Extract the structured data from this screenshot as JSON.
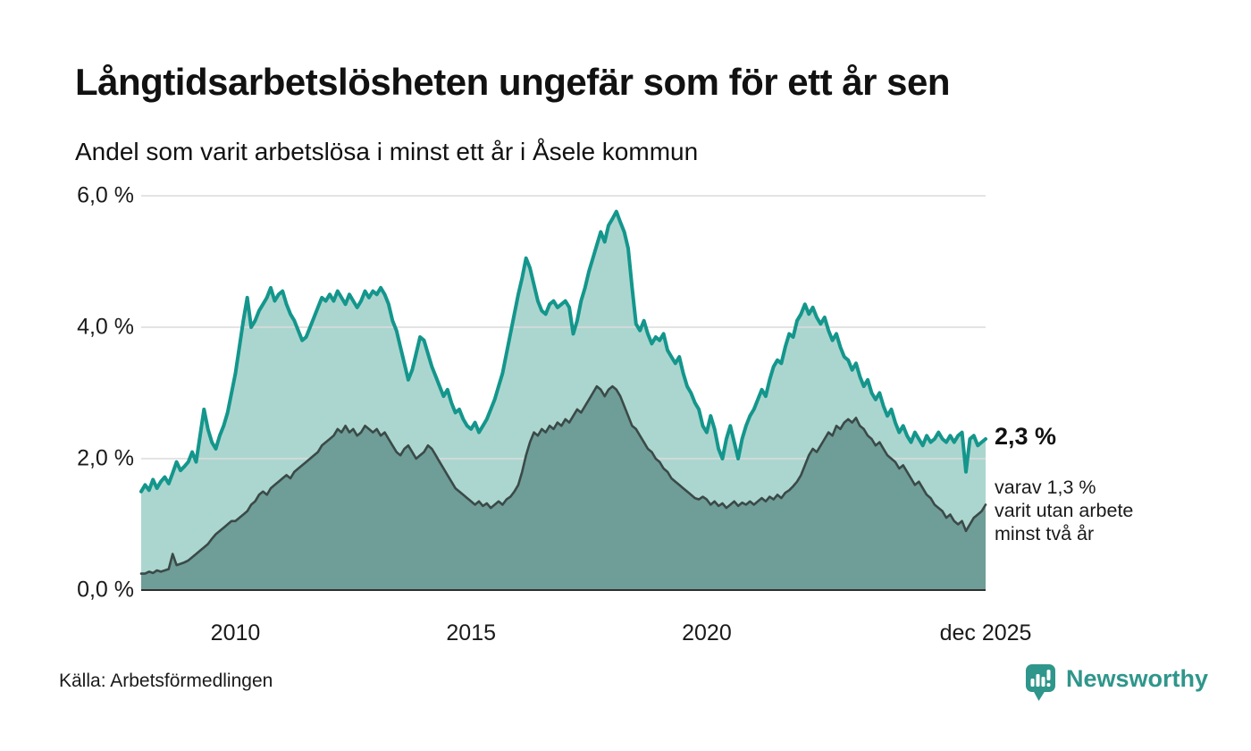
{
  "title": "Långtidsarbetslösheten ungefär som för ett år sen",
  "subtitle": "Andel som varit arbetslösa i minst ett år i Åsele kommun",
  "source": "Källa: Arbetsförmedlingen",
  "logo": {
    "text": "Newsworthy"
  },
  "annotation": {
    "value": "2,3 %",
    "line1": "varav 1,3 %",
    "line2": "varit utan arbete",
    "line3": "minst två år"
  },
  "colors": {
    "teal_line": "#14968c",
    "light_fill": "#abd6cf",
    "dark_fill": "#6f9d98",
    "dark_line": "#3a4a48",
    "grid": "#dcdcdc",
    "axis": "#2f2f2f",
    "logo_teal": "#2f968b"
  },
  "chart_data": {
    "type": "area",
    "title": "Andel som varit arbetslösa i minst ett år i Åsele kommun",
    "x_start_year": 2008,
    "x_end_label": "dec 2025",
    "frequency": "monthly",
    "ylim": [
      0,
      6
    ],
    "y_ticks": [
      {
        "value": 0,
        "label": "0,0 %"
      },
      {
        "value": 2,
        "label": "2,0 %"
      },
      {
        "value": 4,
        "label": "4,0 %"
      },
      {
        "value": 6,
        "label": "6,0 %"
      }
    ],
    "x_ticks": [
      {
        "month_index": 24,
        "label": "2010"
      },
      {
        "month_index": 84,
        "label": "2015"
      },
      {
        "month_index": 144,
        "label": "2020"
      },
      {
        "month_index": 215,
        "label": "dec 2025"
      }
    ],
    "series": [
      {
        "name": "Andel arbetslösa minst ett år",
        "color": "#14968c",
        "fill": "#abd6cf",
        "line_width": 4,
        "end_value_label": "2,3 %",
        "values": [
          1.5,
          1.6,
          1.52,
          1.68,
          1.55,
          1.65,
          1.72,
          1.62,
          1.78,
          1.95,
          1.82,
          1.88,
          1.95,
          2.1,
          1.95,
          2.35,
          2.75,
          2.45,
          2.25,
          2.15,
          2.35,
          2.5,
          2.7,
          3.0,
          3.3,
          3.7,
          4.1,
          4.45,
          4.0,
          4.1,
          4.25,
          4.35,
          4.45,
          4.6,
          4.4,
          4.5,
          4.55,
          4.35,
          4.2,
          4.1,
          3.95,
          3.8,
          3.85,
          4.0,
          4.15,
          4.3,
          4.45,
          4.4,
          4.5,
          4.4,
          4.55,
          4.45,
          4.35,
          4.5,
          4.4,
          4.3,
          4.4,
          4.55,
          4.45,
          4.55,
          4.5,
          4.6,
          4.5,
          4.35,
          4.1,
          3.95,
          3.7,
          3.45,
          3.2,
          3.35,
          3.6,
          3.85,
          3.8,
          3.6,
          3.4,
          3.25,
          3.1,
          2.95,
          3.05,
          2.85,
          2.7,
          2.75,
          2.6,
          2.5,
          2.45,
          2.55,
          2.4,
          2.5,
          2.6,
          2.75,
          2.9,
          3.1,
          3.3,
          3.6,
          3.9,
          4.2,
          4.5,
          4.75,
          5.05,
          4.9,
          4.65,
          4.4,
          4.25,
          4.2,
          4.35,
          4.4,
          4.3,
          4.35,
          4.4,
          4.3,
          3.9,
          4.1,
          4.4,
          4.6,
          4.85,
          5.05,
          5.25,
          5.45,
          5.3,
          5.55,
          5.65,
          5.76,
          5.6,
          5.45,
          5.2,
          4.6,
          4.05,
          3.95,
          4.1,
          3.9,
          3.75,
          3.85,
          3.8,
          3.9,
          3.65,
          3.55,
          3.45,
          3.55,
          3.3,
          3.1,
          3.0,
          2.85,
          2.75,
          2.5,
          2.4,
          2.65,
          2.45,
          2.15,
          2.0,
          2.3,
          2.5,
          2.25,
          2.0,
          2.3,
          2.5,
          2.65,
          2.75,
          2.9,
          3.05,
          2.95,
          3.2,
          3.4,
          3.5,
          3.45,
          3.7,
          3.9,
          3.85,
          4.1,
          4.2,
          4.35,
          4.2,
          4.3,
          4.15,
          4.05,
          4.15,
          3.95,
          3.8,
          3.9,
          3.7,
          3.55,
          3.5,
          3.35,
          3.45,
          3.25,
          3.1,
          3.2,
          3.0,
          2.9,
          3.0,
          2.8,
          2.65,
          2.75,
          2.55,
          2.4,
          2.5,
          2.35,
          2.25,
          2.4,
          2.3,
          2.2,
          2.35,
          2.25,
          2.3,
          2.4,
          2.3,
          2.25,
          2.35,
          2.25,
          2.35,
          2.4,
          1.8,
          2.3,
          2.35,
          2.2,
          2.25,
          2.3
        ]
      },
      {
        "name": "varav utan arbete minst två år",
        "color": "#3a4a48",
        "fill": "#6f9d98",
        "line_width": 2.6,
        "end_value_label": "1,3 %",
        "values": [
          0.25,
          0.25,
          0.28,
          0.26,
          0.3,
          0.28,
          0.3,
          0.32,
          0.55,
          0.38,
          0.4,
          0.42,
          0.45,
          0.5,
          0.55,
          0.6,
          0.65,
          0.7,
          0.78,
          0.85,
          0.9,
          0.95,
          1.0,
          1.05,
          1.05,
          1.1,
          1.15,
          1.2,
          1.3,
          1.35,
          1.45,
          1.5,
          1.45,
          1.55,
          1.6,
          1.65,
          1.7,
          1.75,
          1.7,
          1.8,
          1.85,
          1.9,
          1.95,
          2.0,
          2.05,
          2.1,
          2.2,
          2.25,
          2.3,
          2.35,
          2.45,
          2.4,
          2.5,
          2.4,
          2.45,
          2.35,
          2.4,
          2.5,
          2.45,
          2.4,
          2.45,
          2.35,
          2.4,
          2.3,
          2.2,
          2.1,
          2.05,
          2.15,
          2.2,
          2.1,
          2.0,
          2.05,
          2.1,
          2.2,
          2.15,
          2.05,
          1.95,
          1.85,
          1.75,
          1.65,
          1.55,
          1.5,
          1.45,
          1.4,
          1.35,
          1.3,
          1.35,
          1.28,
          1.32,
          1.25,
          1.3,
          1.35,
          1.3,
          1.38,
          1.42,
          1.5,
          1.6,
          1.8,
          2.05,
          2.25,
          2.4,
          2.35,
          2.45,
          2.4,
          2.5,
          2.45,
          2.55,
          2.5,
          2.6,
          2.55,
          2.65,
          2.75,
          2.7,
          2.8,
          2.9,
          3.0,
          3.1,
          3.05,
          2.95,
          3.05,
          3.1,
          3.05,
          2.95,
          2.8,
          2.65,
          2.5,
          2.45,
          2.35,
          2.25,
          2.15,
          2.1,
          2.0,
          1.95,
          1.85,
          1.8,
          1.7,
          1.65,
          1.6,
          1.55,
          1.5,
          1.45,
          1.4,
          1.38,
          1.42,
          1.38,
          1.3,
          1.35,
          1.28,
          1.32,
          1.25,
          1.3,
          1.35,
          1.28,
          1.33,
          1.3,
          1.35,
          1.3,
          1.35,
          1.4,
          1.35,
          1.42,
          1.38,
          1.45,
          1.4,
          1.48,
          1.52,
          1.58,
          1.65,
          1.75,
          1.9,
          2.05,
          2.15,
          2.1,
          2.2,
          2.3,
          2.4,
          2.35,
          2.5,
          2.45,
          2.55,
          2.6,
          2.55,
          2.62,
          2.5,
          2.45,
          2.35,
          2.3,
          2.2,
          2.25,
          2.15,
          2.05,
          2.0,
          1.95,
          1.85,
          1.9,
          1.8,
          1.7,
          1.6,
          1.65,
          1.55,
          1.45,
          1.4,
          1.3,
          1.25,
          1.2,
          1.1,
          1.15,
          1.05,
          1.0,
          1.05,
          0.9,
          1.0,
          1.1,
          1.15,
          1.2,
          1.3
        ]
      }
    ]
  }
}
